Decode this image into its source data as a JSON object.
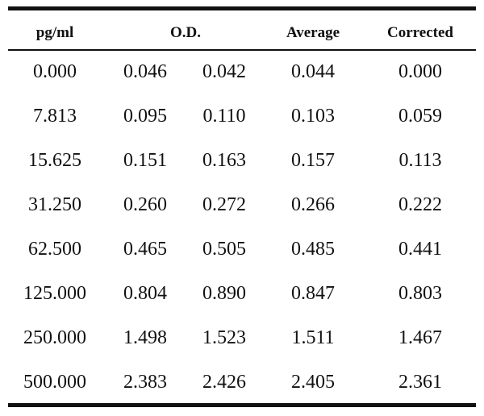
{
  "table": {
    "headers": {
      "pg_ml": "pg/ml",
      "od": "O.D.",
      "average": "Average",
      "corrected": "Corrected"
    },
    "rows": [
      [
        "0.000",
        "0.046",
        "0.042",
        "0.044",
        "0.000"
      ],
      [
        "7.813",
        "0.095",
        "0.110",
        "0.103",
        "0.059"
      ],
      [
        "15.625",
        "0.151",
        "0.163",
        "0.157",
        "0.113"
      ],
      [
        "31.250",
        "0.260",
        "0.272",
        "0.266",
        "0.222"
      ],
      [
        "62.500",
        "0.465",
        "0.505",
        "0.485",
        "0.441"
      ],
      [
        "125.000",
        "0.804",
        "0.890",
        "0.847",
        "0.803"
      ],
      [
        "250.000",
        "1.498",
        "1.523",
        "1.511",
        "1.467"
      ],
      [
        "500.000",
        "2.383",
        "2.426",
        "2.405",
        "2.361"
      ]
    ]
  }
}
